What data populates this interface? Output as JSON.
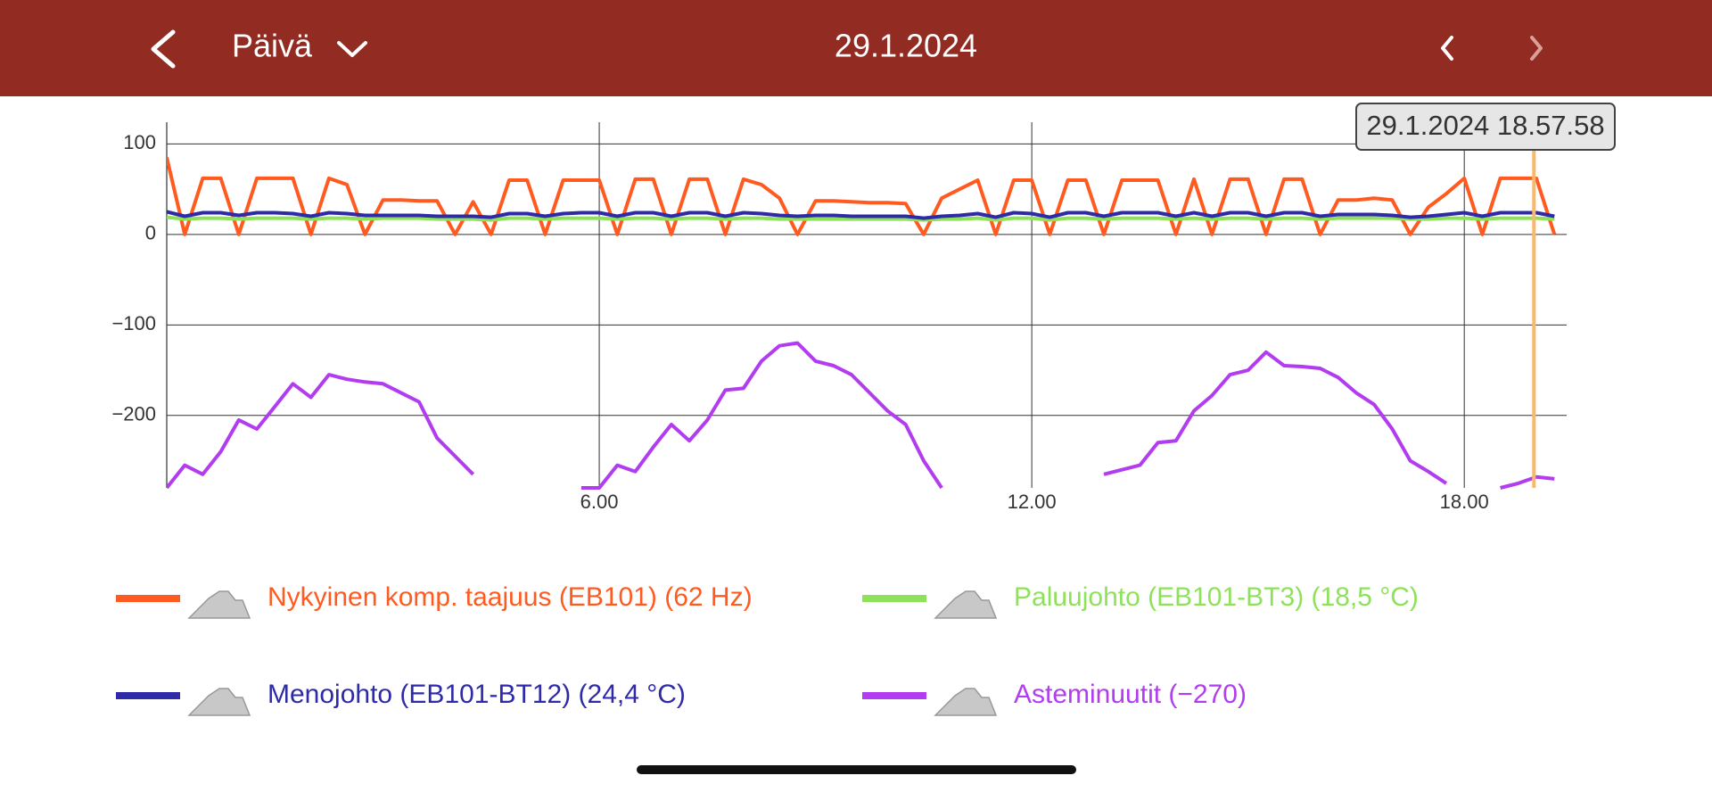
{
  "header": {
    "period": "Päivä",
    "date": "29.1.2024"
  },
  "chart_data": {
    "type": "line",
    "cursor": {
      "x": 18.966,
      "label": "29.1.2024 18.57.58"
    },
    "xlim": [
      0,
      19.42
    ],
    "xticks": [
      {
        "value": 6,
        "label": "6.00"
      },
      {
        "value": 12,
        "label": "12.00"
      },
      {
        "value": 18,
        "label": "18.00"
      }
    ],
    "ylim": [
      -280,
      124
    ],
    "yticks": [
      100,
      0,
      {
        "value": -100,
        "label": "−100"
      },
      {
        "value": -200,
        "label": "−200"
      }
    ],
    "grid": true,
    "x": [
      0,
      0.25,
      0.5,
      0.75,
      1,
      1.25,
      1.5,
      1.75,
      2,
      2.25,
      2.5,
      2.75,
      3,
      3.25,
      3.5,
      3.75,
      4,
      4.25,
      4.5,
      4.75,
      5,
      5.25,
      5.5,
      5.75,
      6,
      6.25,
      6.5,
      6.75,
      7,
      7.25,
      7.5,
      7.75,
      8,
      8.25,
      8.5,
      8.75,
      9,
      9.25,
      9.5,
      9.75,
      10,
      10.25,
      10.5,
      10.75,
      11,
      11.25,
      11.5,
      11.75,
      12,
      12.25,
      12.5,
      12.75,
      13,
      13.25,
      13.5,
      13.75,
      14,
      14.25,
      14.5,
      14.75,
      15,
      15.25,
      15.5,
      15.75,
      16,
      16.25,
      16.5,
      16.75,
      17,
      17.25,
      17.5,
      17.75,
      18,
      18.25,
      18.5,
      18.75,
      19,
      19.25
    ],
    "series": [
      {
        "name": "Nykyinen komp. taajuus (EB101) (62 Hz)",
        "color": "#ff5a1f",
        "values": [
          85,
          0,
          62,
          62,
          0,
          62,
          62,
          62,
          0,
          62,
          55,
          0,
          38,
          38,
          37,
          37,
          0,
          36,
          0,
          60,
          60,
          0,
          60,
          60,
          60,
          0,
          61,
          61,
          0,
          61,
          61,
          0,
          61,
          55,
          40,
          0,
          37,
          37,
          36,
          35,
          35,
          34,
          0,
          40,
          50,
          60,
          0,
          60,
          60,
          0,
          60,
          60,
          0,
          60,
          60,
          60,
          0,
          61,
          0,
          61,
          61,
          0,
          61,
          61,
          0,
          38,
          38,
          40,
          38,
          0,
          30,
          45,
          62,
          0,
          62,
          62,
          62,
          0
        ]
      },
      {
        "name": "Paluujohto (EB101-BT3) (18,5 °C)",
        "color": "#8ee25a",
        "values": [
          19,
          17,
          18,
          18,
          17,
          18,
          18,
          18,
          17,
          18,
          18,
          17,
          18,
          18,
          18,
          17,
          17,
          17,
          16,
          18,
          18,
          17,
          18,
          18,
          18,
          17,
          18,
          18,
          17,
          18,
          18,
          17,
          18,
          18,
          17,
          17,
          17,
          17,
          17,
          17,
          17,
          17,
          16,
          17,
          17,
          18,
          16,
          18,
          18,
          16,
          18,
          18,
          17,
          18,
          18,
          18,
          17,
          18,
          17,
          18,
          18,
          17,
          18,
          18,
          17,
          18,
          18,
          18,
          18,
          17,
          17,
          18,
          18,
          17,
          18,
          18,
          18,
          17
        ]
      },
      {
        "name": "Menojohto (EB101-BT12) (24,4 °C)",
        "color": "#2e2aa8",
        "values": [
          25,
          20,
          24,
          24,
          21,
          24,
          24,
          23,
          20,
          24,
          23,
          21,
          21,
          21,
          21,
          20,
          20,
          20,
          19,
          23,
          23,
          20,
          23,
          24,
          24,
          20,
          24,
          24,
          20,
          24,
          24,
          20,
          24,
          23,
          21,
          20,
          21,
          21,
          20,
          20,
          20,
          20,
          18,
          20,
          21,
          23,
          19,
          24,
          23,
          19,
          24,
          24,
          20,
          24,
          24,
          24,
          20,
          24,
          20,
          24,
          24,
          20,
          24,
          24,
          20,
          22,
          22,
          22,
          21,
          19,
          20,
          22,
          24,
          20,
          24,
          24,
          24,
          20
        ]
      },
      {
        "name": "Asteminuutit (−270)",
        "color": "#b23cf0",
        "values": [
          -280,
          -255,
          -265,
          -240,
          -205,
          -215,
          -190,
          -165,
          -180,
          -155,
          -160,
          -163,
          -165,
          -175,
          -185,
          -225,
          -245,
          -265,
          null,
          null,
          null,
          null,
          null,
          -280,
          -280,
          -255,
          -262,
          -235,
          -210,
          -228,
          -205,
          -172,
          -170,
          -140,
          -123,
          -120,
          -140,
          -145,
          -155,
          -175,
          -195,
          -210,
          -250,
          -280,
          null,
          null,
          null,
          null,
          null,
          null,
          null,
          null,
          -265,
          -260,
          -255,
          -230,
          -228,
          -195,
          -178,
          -155,
          -150,
          -130,
          -145,
          -146,
          -148,
          -158,
          -175,
          -188,
          -215,
          -250,
          -262,
          -275,
          null,
          null,
          -280,
          -275,
          -268,
          -270
        ]
      }
    ]
  }
}
